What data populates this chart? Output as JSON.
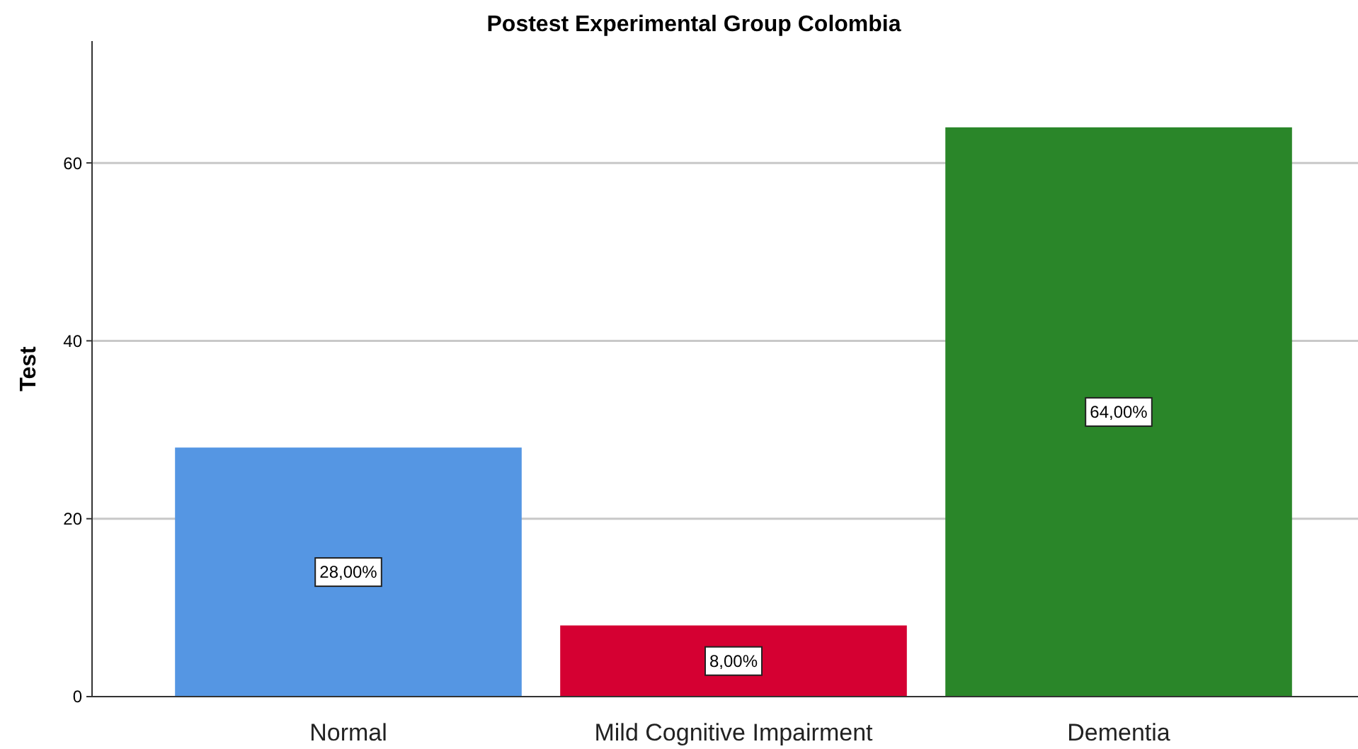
{
  "chart_data": {
    "type": "bar",
    "title": "Postest Experimental Group Colombia",
    "ylabel": "Test",
    "categories": [
      "Normal",
      "Mild Cognitive Impairment",
      "Dementia"
    ],
    "values": [
      28,
      8,
      64
    ],
    "colors": [
      "#5596e3",
      "#d50032",
      "#2a8629"
    ],
    "value_labels": [
      "28,00%",
      "8,00%",
      "64,00%"
    ],
    "ylim": [
      0,
      73.7
    ],
    "yticks": [
      0,
      20,
      40,
      60
    ],
    "grid": "y"
  }
}
